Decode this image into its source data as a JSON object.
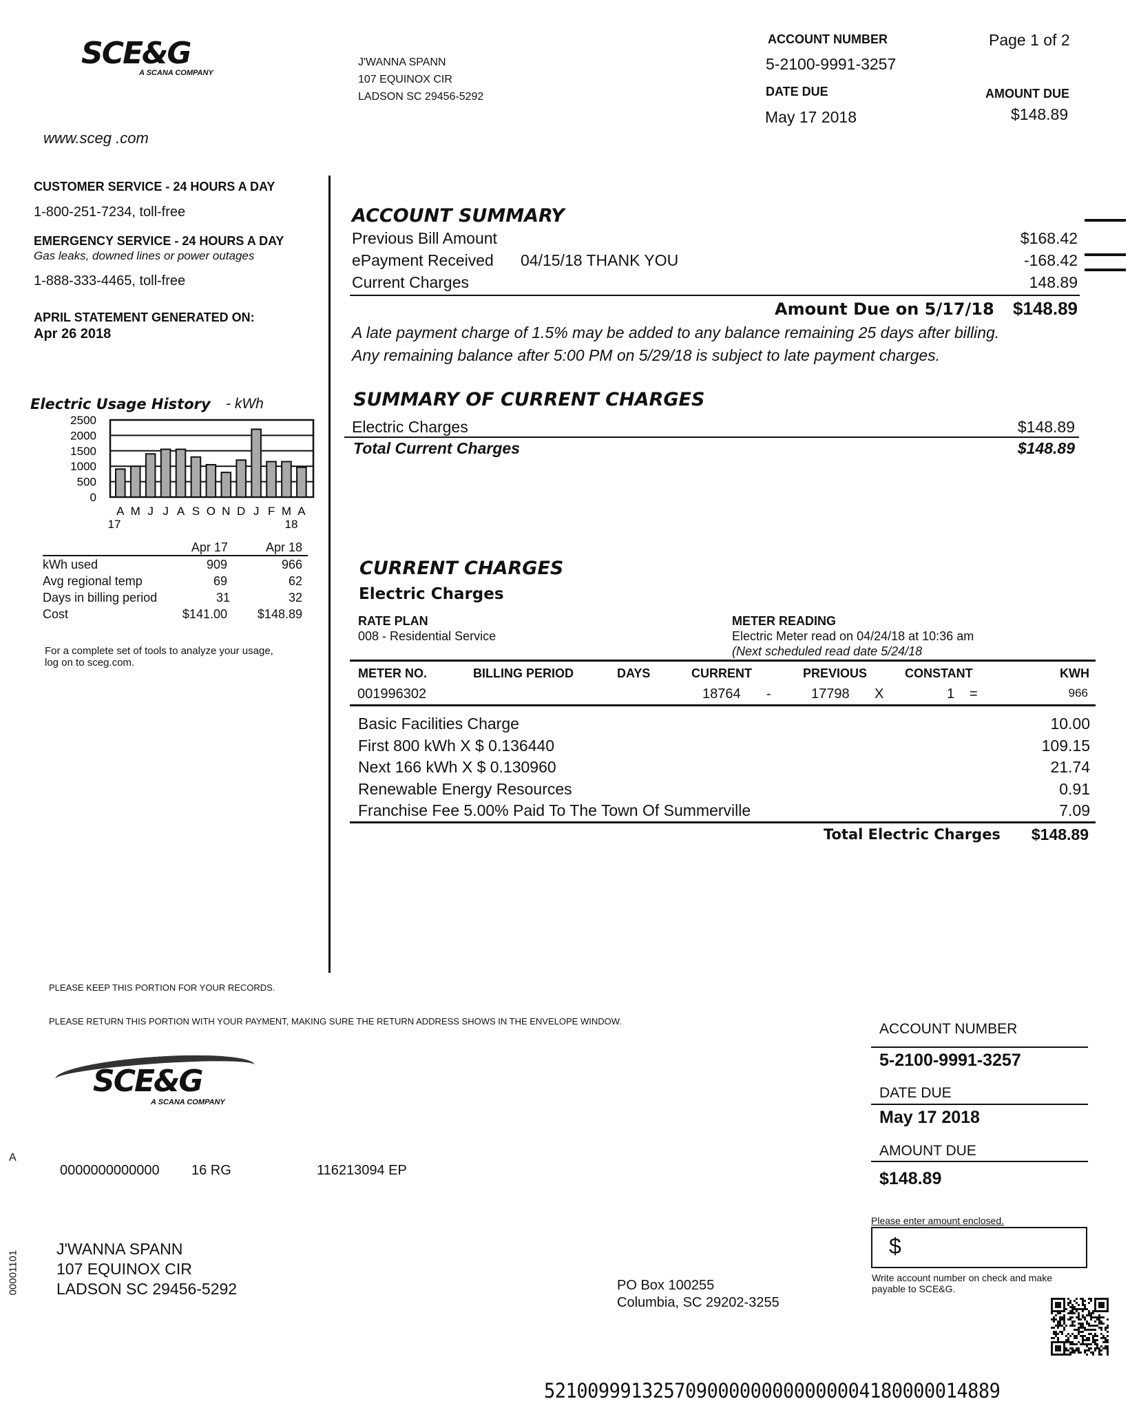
{
  "header": {
    "logo_text": "SCE&G",
    "logo_sub": "A SCANA COMPANY",
    "website": "www.sceg .com",
    "customer_name": "J'WANNA SPANN",
    "address1": "107 EQUINOX CIR",
    "address2": "LADSON SC  29456-5292",
    "account_label": "ACCOUNT NUMBER",
    "account_number": "5-2100-9991-3257",
    "page": "Page 1 of 2",
    "date_due_label": "DATE DUE",
    "date_due": "May 17 2018",
    "amount_due_label": "AMOUNT DUE",
    "amount_due": "$148.89"
  },
  "sidebar": {
    "cs_label": "CUSTOMER SERVICE - 24 HOURS A DAY",
    "cs_phone": "1-800-251-7234, toll-free",
    "em_label": "EMERGENCY SERVICE - 24 HOURS A  DAY",
    "em_sub": "Gas leaks, downed lines or power outages",
    "em_phone": "1-888-333-4465, toll-free",
    "stmt_label": "APRIL STATEMENT GENERATED ON:",
    "stmt_date": "Apr 26 2018",
    "usage_title": "Electric Usage History",
    "usage_unit": "- kWh",
    "compare_headers": [
      "Apr 17",
      "Apr 18"
    ],
    "compare_rows": [
      {
        "label": "kWh used",
        "a": "909",
        "b": "966"
      },
      {
        "label": "Avg regional temp",
        "a": "69",
        "b": "62"
      },
      {
        "label": "Days in billing period",
        "a": "31",
        "b": "32"
      },
      {
        "label": "Cost",
        "a": "$141.00",
        "b": "$148.89"
      }
    ],
    "tools_note1": "For a complete set of tools to analyze your usage,",
    "tools_note2": "log on to sceg.com."
  },
  "chart_data": {
    "type": "bar",
    "title": "Electric Usage History",
    "ylabel": "- kWh",
    "categories": [
      "A",
      "M",
      "J",
      "J",
      "A",
      "S",
      "O",
      "N",
      "D",
      "J",
      "F",
      "M",
      "A"
    ],
    "year_labels": [
      "17",
      "18"
    ],
    "values": [
      909,
      1000,
      1400,
      1550,
      1550,
      1300,
      1050,
      800,
      1200,
      2200,
      1150,
      1150,
      966
    ],
    "yticks": [
      "2500",
      "2000",
      "1500",
      "1000",
      "500",
      "0"
    ],
    "ylim": [
      0,
      2500
    ],
    "grid": true,
    "bar_color": "#a9a9a9"
  },
  "summary": {
    "title": "ACCOUNT SUMMARY",
    "rows": [
      {
        "label": "Previous Bill Amount",
        "note": "",
        "value": "$168.42"
      },
      {
        "label": "ePayment Received",
        "note": "04/15/18 THANK YOU",
        "value": "-168.42"
      },
      {
        "label": "Current Charges",
        "note": "",
        "value": "148.89"
      }
    ],
    "due_label": "Amount Due on 5/17/18",
    "due_value": "$148.89",
    "late1": "A late payment charge of 1.5% may be added to any balance remaining 25 days after billing.",
    "late2": "Any remaining balance after 5:00 PM on 5/29/18 is subject to late payment charges."
  },
  "soc": {
    "title": "SUMMARY OF CURRENT CHARGES",
    "item": "Electric Charges",
    "item_value": "$148.89",
    "total": "Total Current Charges",
    "total_value": "$148.89"
  },
  "cc": {
    "title": "CURRENT CHARGES",
    "subtitle": "Electric Charges",
    "rate_label": "RATE PLAN",
    "rate_value": "008 - Residential Service",
    "meter_label": "METER READING",
    "meter_line1": "Electric Meter read on 04/24/18 at 10:36 am",
    "meter_line2": "(Next scheduled read date 5/24/18",
    "headers": [
      "METER NO.",
      "BILLING PERIOD",
      "DAYS",
      "CURRENT",
      "PREVIOUS",
      "CONSTANT",
      "KWH"
    ],
    "meter": {
      "no": "001996302",
      "current": "18764",
      "minus": "-",
      "previous": "17798",
      "times": "X",
      "constant": "1",
      "eq": "=",
      "kwh": "966"
    },
    "lines": [
      {
        "label": "Basic Facilities Charge",
        "value": "10.00"
      },
      {
        "label": "First 800 kWh X $ 0.136440",
        "value": "109.15"
      },
      {
        "label": "Next 166 kWh X $ 0.130960",
        "value": "21.74"
      },
      {
        "label": "Renewable Energy Resources",
        "value": "0.91"
      },
      {
        "label": "Franchise Fee 5.00% Paid To The Town Of Summerville",
        "value": "7.09"
      }
    ],
    "total_label": "Total Electric Charges",
    "total_value": "$148.89"
  },
  "stub": {
    "keep": "PLEASE KEEP THIS PORTION FOR YOUR RECORDS.",
    "return": "PLEASE RETURN THIS PORTION WITH YOUR PAYMENT, MAKING SURE THE RETURN ADDRESS SHOWS IN THE ENVELOPE WINDOW.",
    "account_label": "ACCOUNT NUMBER",
    "account_number": "5-2100-9991-3257",
    "date_label": "DATE DUE",
    "date_due": "May 17 2018",
    "amount_label": "AMOUNT DUE",
    "amount_due": "$148.89",
    "enter_label": "Please enter amount enclosed.",
    "dollar": "$",
    "write_note1": "Write account number on check and make",
    "write_note2": "payable to SCE&G.",
    "marker": "A",
    "code1": "0000000000000",
    "code2": "16  RG",
    "code3": "116213094 EP",
    "side_code": "00001101",
    "name": "J'WANNA SPANN",
    "address1": "107 EQUINOX CIR",
    "address2": "LADSON SC 29456-5292",
    "remit1": "PO Box 100255",
    "remit2": "Columbia, SC 29202-3255",
    "scanline": "521009991325709000000000000004180000014889"
  }
}
